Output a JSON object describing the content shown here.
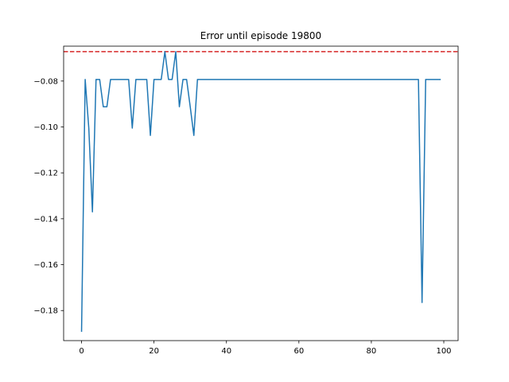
{
  "chart_data": {
    "type": "line",
    "title": "Error until episode 19800",
    "xlabel": "",
    "ylabel": "",
    "xlim": [
      -4.95,
      103.95
    ],
    "ylim": [
      -0.1931,
      -0.0648
    ],
    "xticks": [
      0,
      20,
      40,
      60,
      80,
      100
    ],
    "xtick_labels": [
      "0",
      "20",
      "40",
      "60",
      "80",
      "100"
    ],
    "yticks": [
      -0.18,
      -0.16,
      -0.14,
      -0.12,
      -0.1,
      -0.08
    ],
    "ytick_labels": [
      "−0.18",
      "−0.16",
      "−0.14",
      "−0.12",
      "−0.10",
      "−0.08"
    ],
    "grid": false,
    "reference_line": {
      "y": -0.0672,
      "color": "#d62728",
      "style": "dashed"
    },
    "series": [
      {
        "color": "#1f77b4",
        "x": [
          0,
          1,
          2,
          3,
          4,
          5,
          6,
          7,
          8,
          9,
          10,
          11,
          12,
          13,
          14,
          15,
          16,
          17,
          18,
          19,
          20,
          21,
          22,
          23,
          24,
          25,
          26,
          27,
          28,
          29,
          30,
          31,
          32,
          33,
          34,
          35,
          36,
          37,
          38,
          39,
          40,
          41,
          42,
          43,
          44,
          45,
          46,
          47,
          48,
          49,
          50,
          51,
          52,
          53,
          54,
          55,
          56,
          57,
          58,
          59,
          60,
          61,
          62,
          63,
          64,
          65,
          66,
          67,
          68,
          69,
          70,
          71,
          72,
          73,
          74,
          75,
          76,
          77,
          78,
          79,
          80,
          81,
          82,
          83,
          84,
          85,
          86,
          87,
          88,
          89,
          90,
          91,
          92,
          93,
          94,
          95,
          96,
          97,
          98,
          99
        ],
        "y": [
          -0.189,
          -0.0793,
          -0.1005,
          -0.137,
          -0.0793,
          -0.0793,
          -0.0912,
          -0.0912,
          -0.0793,
          -0.0793,
          -0.0793,
          -0.0793,
          -0.0793,
          -0.0793,
          -0.1005,
          -0.0793,
          -0.0793,
          -0.0793,
          -0.0793,
          -0.1037,
          -0.0793,
          -0.0793,
          -0.0793,
          -0.0672,
          -0.0793,
          -0.0793,
          -0.0672,
          -0.0912,
          -0.0793,
          -0.0793,
          -0.0912,
          -0.1037,
          -0.0793,
          -0.0793,
          -0.0793,
          -0.0793,
          -0.0793,
          -0.0793,
          -0.0793,
          -0.0793,
          -0.0793,
          -0.0793,
          -0.0793,
          -0.0793,
          -0.0793,
          -0.0793,
          -0.0793,
          -0.0793,
          -0.0793,
          -0.0793,
          -0.0793,
          -0.0793,
          -0.0793,
          -0.0793,
          -0.0793,
          -0.0793,
          -0.0793,
          -0.0793,
          -0.0793,
          -0.0793,
          -0.0793,
          -0.0793,
          -0.0793,
          -0.0793,
          -0.0793,
          -0.0793,
          -0.0793,
          -0.0793,
          -0.0793,
          -0.0793,
          -0.0793,
          -0.0793,
          -0.0793,
          -0.0793,
          -0.0793,
          -0.0793,
          -0.0793,
          -0.0793,
          -0.0793,
          -0.0793,
          -0.0793,
          -0.0793,
          -0.0793,
          -0.0793,
          -0.0793,
          -0.0793,
          -0.0793,
          -0.0793,
          -0.0793,
          -0.0793,
          -0.0793,
          -0.0793,
          -0.0793,
          -0.0793,
          -0.1765,
          -0.0793,
          -0.0793,
          -0.0793,
          -0.0793,
          -0.0793
        ]
      }
    ]
  }
}
